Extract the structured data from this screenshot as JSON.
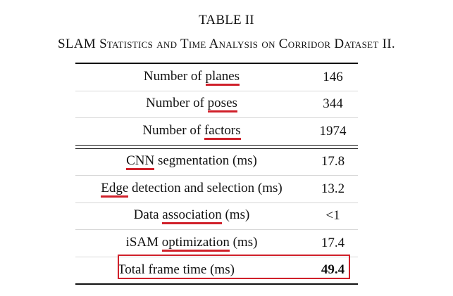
{
  "table_label": "TABLE II",
  "table_caption": "SLAM Statistics and Time Analysis on Corridor Dataset II.",
  "statistics": [
    {
      "pre": "Number of ",
      "term": "planes",
      "post": "",
      "value": "146"
    },
    {
      "pre": "Number of ",
      "term": "poses",
      "post": "",
      "value": "344"
    },
    {
      "pre": "Number of ",
      "term": "factors",
      "post": "",
      "value": "1974"
    }
  ],
  "timing": [
    {
      "pre": "",
      "term": "CNN",
      "post": " segmentation (ms)",
      "value": "17.8"
    },
    {
      "pre": "",
      "term": "Edge",
      "post": " detection and selection (ms)",
      "value": "13.2"
    },
    {
      "pre": "Data ",
      "term": "association",
      "post": " (ms)",
      "value": "<1"
    },
    {
      "pre": "iSAM ",
      "term": "optimization",
      "post": " (ms)",
      "value": "17.4"
    }
  ],
  "total": {
    "label": "Total frame time (ms)",
    "value": "49.4"
  },
  "colors": {
    "highlight": "#d0202a",
    "text": "#111111"
  }
}
